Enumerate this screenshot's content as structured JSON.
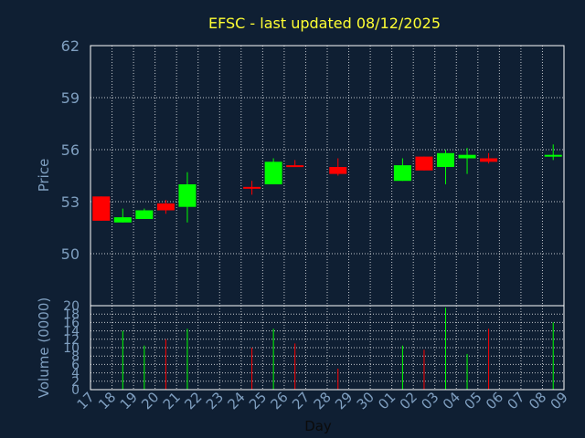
{
  "chart_data": {
    "type": "candlestick",
    "title": "EFSC - last updated 08/12/2025",
    "xlabel": "Day",
    "colors": {
      "up": "#00ff00",
      "down": "#ff0000",
      "title": "#ffff33",
      "axis": "#7f9fc0",
      "background": "#0f1f33"
    },
    "x_ticks": [
      "17",
      "18",
      "19",
      "20",
      "21",
      "22",
      "23",
      "24",
      "25",
      "26",
      "27",
      "28",
      "29",
      "30",
      "01",
      "02",
      "03",
      "04",
      "05",
      "06",
      "07",
      "08",
      "09"
    ],
    "price_panel": {
      "ylabel": "Price",
      "ylim": [
        47,
        62
      ],
      "y_ticks": [
        "50",
        "53",
        "56",
        "59",
        "62"
      ],
      "candles": [
        {
          "day": 0,
          "open": 53.3,
          "high": 53.3,
          "low": 51.9,
          "close": 51.9,
          "dir": "down"
        },
        {
          "day": 1,
          "open": 51.8,
          "high": 52.6,
          "low": 51.8,
          "close": 52.1,
          "dir": "up"
        },
        {
          "day": 2,
          "open": 52.0,
          "high": 52.6,
          "low": 52.0,
          "close": 52.5,
          "dir": "up"
        },
        {
          "day": 3,
          "open": 52.9,
          "high": 53.1,
          "low": 52.3,
          "close": 52.5,
          "dir": "down"
        },
        {
          "day": 4,
          "open": 52.7,
          "high": 54.7,
          "low": 51.8,
          "close": 54.0,
          "dir": "up"
        },
        {
          "day": 7,
          "open": 53.85,
          "high": 54.2,
          "low": 53.4,
          "close": 53.85,
          "dir": "down"
        },
        {
          "day": 8,
          "open": 54.0,
          "high": 55.5,
          "low": 54.0,
          "close": 55.3,
          "dir": "up"
        },
        {
          "day": 9,
          "open": 55.1,
          "high": 55.4,
          "low": 55.0,
          "close": 55.05,
          "dir": "down"
        },
        {
          "day": 11,
          "open": 55.0,
          "high": 55.5,
          "low": 54.5,
          "close": 54.6,
          "dir": "down"
        },
        {
          "day": 14,
          "open": 54.2,
          "high": 55.5,
          "low": 54.2,
          "close": 55.1,
          "dir": "up"
        },
        {
          "day": 15,
          "open": 55.6,
          "high": 55.6,
          "low": 54.8,
          "close": 54.8,
          "dir": "down"
        },
        {
          "day": 16,
          "open": 55.0,
          "high": 56.0,
          "low": 54.0,
          "close": 55.8,
          "dir": "up"
        },
        {
          "day": 17,
          "open": 55.5,
          "high": 56.1,
          "low": 54.6,
          "close": 55.7,
          "dir": "up"
        },
        {
          "day": 18,
          "open": 55.5,
          "high": 55.8,
          "low": 55.2,
          "close": 55.3,
          "dir": "down"
        },
        {
          "day": 21,
          "open": 55.6,
          "high": 56.3,
          "low": 55.4,
          "close": 55.7,
          "dir": "up"
        }
      ]
    },
    "volume_panel": {
      "ylabel": "Volume (0000)",
      "ylim": [
        0,
        20
      ],
      "y_ticks": [
        "0",
        "2",
        "4",
        "6",
        "8",
        "10",
        "12",
        "14",
        "16",
        "18",
        "20"
      ],
      "bars": [
        {
          "day": 1,
          "value": 14,
          "dir": "up"
        },
        {
          "day": 2,
          "value": 10.5,
          "dir": "up"
        },
        {
          "day": 3,
          "value": 12,
          "dir": "down"
        },
        {
          "day": 4,
          "value": 14.5,
          "dir": "up"
        },
        {
          "day": 7,
          "value": 10,
          "dir": "down"
        },
        {
          "day": 8,
          "value": 14.5,
          "dir": "up"
        },
        {
          "day": 9,
          "value": 11,
          "dir": "down"
        },
        {
          "day": 11,
          "value": 5,
          "dir": "down"
        },
        {
          "day": 14,
          "value": 10.5,
          "dir": "up"
        },
        {
          "day": 15,
          "value": 9.5,
          "dir": "down"
        },
        {
          "day": 16,
          "value": 19.5,
          "dir": "up"
        },
        {
          "day": 17,
          "value": 8.5,
          "dir": "up"
        },
        {
          "day": 18,
          "value": 14.5,
          "dir": "down"
        },
        {
          "day": 21,
          "value": 16,
          "dir": "up"
        }
      ]
    }
  }
}
